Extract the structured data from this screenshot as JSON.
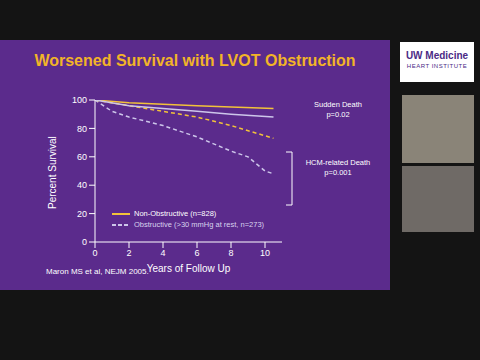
{
  "chart_data": {
    "type": "line",
    "title": "Worsened Survival with LVOT Obstruction",
    "x_label": "Years of Follow Up",
    "y_label": "Percent Survival",
    "xlim": [
      0,
      11
    ],
    "xticks": [
      0,
      2,
      4,
      6,
      8,
      10
    ],
    "ylim": [
      0,
      100
    ],
    "yticks": [
      0,
      20,
      40,
      60,
      80,
      100
    ],
    "grid": false,
    "legend": "lower left",
    "series": [
      {
        "name": "Non-Obstructive (n=828)",
        "color": "#f2c23a",
        "line_style": "solid",
        "x": [
          0,
          2,
          4,
          6,
          8,
          10.5
        ],
        "values": [
          100,
          98,
          97,
          96,
          95,
          94
        ]
      },
      {
        "name": "Obstructive (>30 mmHg at rest, n=273)",
        "color": "#cdc6ea",
        "line_style": "dashed",
        "x": [
          0,
          1,
          2,
          4,
          6,
          8,
          9,
          10,
          10.5
        ],
        "values": [
          100,
          92,
          88,
          82,
          74,
          64,
          60,
          50,
          48
        ]
      },
      {
        "name": "Non-Obstructive (n=828)",
        "color": "#f2c23a",
        "line_style": "dashed",
        "x": [
          0,
          2,
          4,
          6,
          8,
          10.5
        ],
        "values": [
          100,
          96,
          92,
          88,
          82,
          73
        ]
      },
      {
        "name": "Obstructive (>30 mmHg at rest, n=273)",
        "color": "#cdc6ea",
        "line_style": "solid",
        "x": [
          0,
          2,
          4,
          6,
          8,
          10.5
        ],
        "values": [
          100,
          96,
          94,
          92,
          90,
          88
        ]
      }
    ],
    "annotations": [
      {
        "lines": [
          "Sudden Death",
          "p=0.02"
        ]
      },
      {
        "lines": [
          "HCM-related Death",
          "p=0.001"
        ]
      }
    ],
    "source": "Maron MS et al, NEJM 2005."
  },
  "logo": {
    "line1": "UW Medicine",
    "line2": "HEART INSTITUTE"
  }
}
